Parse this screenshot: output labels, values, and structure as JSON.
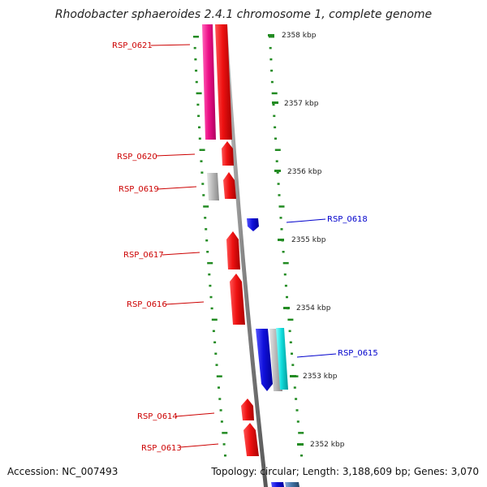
{
  "title": "Rhodobacter sphaeroides 2.4.1 chromosome 1, complete genome",
  "accession_text": "Accession: NC_007493",
  "topology_text": "Topology: circular; Length: 3,188,609 bp; Genes: 3,070",
  "colors": {
    "backbone": "#808080",
    "tick": "#228b22",
    "forward_label": "#cc0000",
    "reverse_label": "#0000cc",
    "red_gene": "#ee1111",
    "pink_gene": "#ee1188",
    "blue_gene": "#1111dd",
    "grey_gene": "#bbbbbb",
    "cyan_gene": "#11dddd",
    "steel_gene": "#4477aa"
  },
  "kbp_labels": [
    "2358 kbp",
    "2357 kbp",
    "2356 kbp",
    "2355 kbp",
    "2354 kbp",
    "2353 kbp",
    "2352 kbp"
  ],
  "gene_labels": [
    {
      "name": "RSP_0621",
      "strand": "forward"
    },
    {
      "name": "RSP_0620",
      "strand": "forward"
    },
    {
      "name": "RSP_0619",
      "strand": "forward"
    },
    {
      "name": "RSP_0618",
      "strand": "reverse"
    },
    {
      "name": "RSP_0617",
      "strand": "forward"
    },
    {
      "name": "RSP_0616",
      "strand": "forward"
    },
    {
      "name": "RSP_0615",
      "strand": "reverse"
    },
    {
      "name": "RSP_0614",
      "strand": "forward"
    },
    {
      "name": "RSP_0613",
      "strand": "forward"
    }
  ],
  "features": [
    {
      "color": "pink_gene",
      "ring": "fwd-outer-2"
    },
    {
      "color": "red_gene",
      "ring": "fwd-outer-1"
    },
    {
      "color": "red_gene",
      "ring": "fwd-outer-1"
    },
    {
      "color": "grey_gene",
      "ring": "fwd-outer-2"
    },
    {
      "color": "red_gene",
      "ring": "fwd-outer-1"
    },
    {
      "color": "blue_gene",
      "ring": "rev-inner-1"
    },
    {
      "color": "red_gene",
      "ring": "fwd-outer-1"
    },
    {
      "color": "red_gene",
      "ring": "fwd-outer-1"
    },
    {
      "color": "blue_gene",
      "ring": "rev-inner-1"
    },
    {
      "color": "grey_gene",
      "ring": "rev-inner-2"
    },
    {
      "color": "cyan_gene",
      "ring": "rev-inner-3"
    },
    {
      "color": "red_gene",
      "ring": "fwd-outer-1"
    },
    {
      "color": "red_gene",
      "ring": "fwd-outer-1"
    },
    {
      "color": "blue_gene",
      "ring": "rev-inner-1"
    },
    {
      "color": "steel_gene",
      "ring": "rev-inner-2"
    }
  ]
}
